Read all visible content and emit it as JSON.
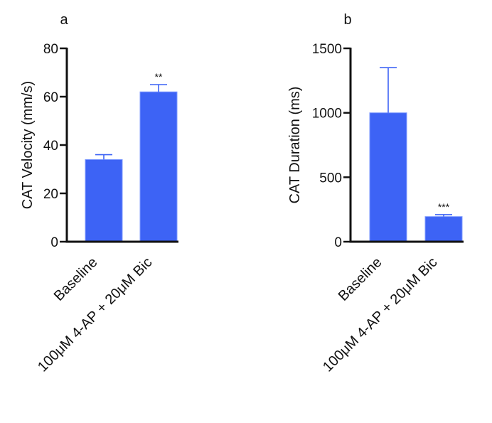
{
  "colors": {
    "bar": "#3d63f5",
    "bar_edge": "#7f9bff",
    "axis": "#111111"
  },
  "chart_data": [
    {
      "type": "bar",
      "panel_label": "a",
      "ylabel": "CAT Velocity (mm/s)",
      "xlabel": "",
      "ylim": [
        0,
        80
      ],
      "yticks": [
        "0",
        "20",
        "40",
        "60",
        "80"
      ],
      "categories": [
        "Baseline",
        "100μM 4-AP + 20μM Bic"
      ],
      "values": [
        34,
        62
      ],
      "error_upper": [
        36,
        65
      ],
      "annotations": [
        "",
        "**"
      ],
      "grid": false
    },
    {
      "type": "bar",
      "panel_label": "b",
      "ylabel": "CAT Duration (ms)",
      "xlabel": "",
      "ylim": [
        0,
        1500
      ],
      "yticks": [
        "0",
        "500",
        "1000",
        "1500"
      ],
      "categories": [
        "Baseline",
        "100μM 4-AP + 20μM Bic"
      ],
      "values": [
        1000,
        195
      ],
      "error_upper": [
        1350,
        210
      ],
      "annotations": [
        "",
        "***"
      ],
      "grid": false
    }
  ]
}
